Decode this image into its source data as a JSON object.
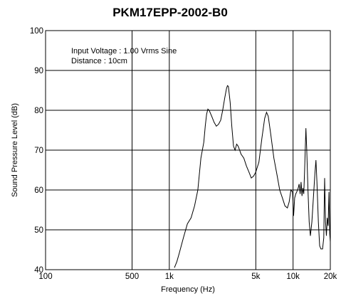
{
  "chart_data": {
    "type": "line",
    "title": "PKM17EPP-2002-B0",
    "xlabel": "Frequency (Hz)",
    "ylabel": "Sound Pressure Level (dB)",
    "xscale": "log",
    "xlim": [
      100,
      20000
    ],
    "ylim": [
      40,
      100
    ],
    "grid": true,
    "annotations": [
      "Input Voltage : 1.00 Vrms Sine",
      "Distance : 10cm"
    ],
    "x_ticks": [
      {
        "value": 100,
        "label": "100"
      },
      {
        "value": 500,
        "label": "500"
      },
      {
        "value": 1000,
        "label": "1k"
      },
      {
        "value": 5000,
        "label": "5k"
      },
      {
        "value": 10000,
        "label": "10k"
      },
      {
        "value": 20000,
        "label": "20k"
      }
    ],
    "x_grid": [
      100,
      500,
      1000,
      5000,
      10000,
      20000
    ],
    "y_ticks": [
      40,
      50,
      60,
      70,
      80,
      90,
      100
    ],
    "series": [
      {
        "color": "#000000",
        "points": [
          [
            1100,
            40.5
          ],
          [
            1150,
            42
          ],
          [
            1200,
            44
          ],
          [
            1300,
            48
          ],
          [
            1400,
            51.5
          ],
          [
            1500,
            53
          ],
          [
            1600,
            56
          ],
          [
            1700,
            60
          ],
          [
            1800,
            68
          ],
          [
            1900,
            72
          ],
          [
            1950,
            76
          ],
          [
            2000,
            79
          ],
          [
            2050,
            80.3
          ],
          [
            2100,
            80
          ],
          [
            2200,
            78.5
          ],
          [
            2300,
            77
          ],
          [
            2400,
            76
          ],
          [
            2500,
            76.5
          ],
          [
            2600,
            77.5
          ],
          [
            2700,
            80
          ],
          [
            2800,
            83
          ],
          [
            2900,
            85.5
          ],
          [
            2950,
            86.2
          ],
          [
            3000,
            86
          ],
          [
            3100,
            82
          ],
          [
            3200,
            76
          ],
          [
            3300,
            71
          ],
          [
            3400,
            70
          ],
          [
            3500,
            71.5
          ],
          [
            3600,
            71
          ],
          [
            3700,
            70
          ],
          [
            3800,
            69
          ],
          [
            4000,
            68
          ],
          [
            4200,
            66
          ],
          [
            4400,
            64.5
          ],
          [
            4600,
            63
          ],
          [
            4800,
            63.5
          ],
          [
            5000,
            64.5
          ],
          [
            5300,
            67
          ],
          [
            5600,
            73
          ],
          [
            5900,
            78
          ],
          [
            6100,
            79.5
          ],
          [
            6300,
            78.5
          ],
          [
            6600,
            74
          ],
          [
            7000,
            68
          ],
          [
            7400,
            64
          ],
          [
            7800,
            60
          ],
          [
            8200,
            58
          ],
          [
            8600,
            56
          ],
          [
            9000,
            55.5
          ],
          [
            9300,
            57
          ],
          [
            9600,
            60
          ],
          [
            9900,
            59.5
          ],
          [
            10100,
            53.5
          ],
          [
            10300,
            58
          ],
          [
            10500,
            59
          ],
          [
            10700,
            59.5
          ],
          [
            11000,
            60.5
          ],
          [
            11200,
            61.5
          ],
          [
            11400,
            59
          ],
          [
            11600,
            62
          ],
          [
            11800,
            58.5
          ],
          [
            12000,
            60.5
          ],
          [
            12200,
            59
          ],
          [
            12400,
            65
          ],
          [
            12700,
            75.5
          ],
          [
            12900,
            70
          ],
          [
            13200,
            60
          ],
          [
            13500,
            52
          ],
          [
            13800,
            48.5
          ],
          [
            14200,
            52
          ],
          [
            14600,
            58
          ],
          [
            15000,
            64
          ],
          [
            15300,
            67.5
          ],
          [
            15600,
            62
          ],
          [
            16000,
            52
          ],
          [
            16400,
            46
          ],
          [
            16800,
            45.2
          ],
          [
            17300,
            45.2
          ],
          [
            17700,
            48
          ],
          [
            18000,
            63
          ],
          [
            18300,
            52
          ],
          [
            18600,
            48.5
          ],
          [
            18900,
            53
          ],
          [
            19200,
            51
          ],
          [
            19500,
            59.5
          ],
          [
            19800,
            49
          ],
          [
            20000,
            47
          ]
        ]
      }
    ]
  }
}
